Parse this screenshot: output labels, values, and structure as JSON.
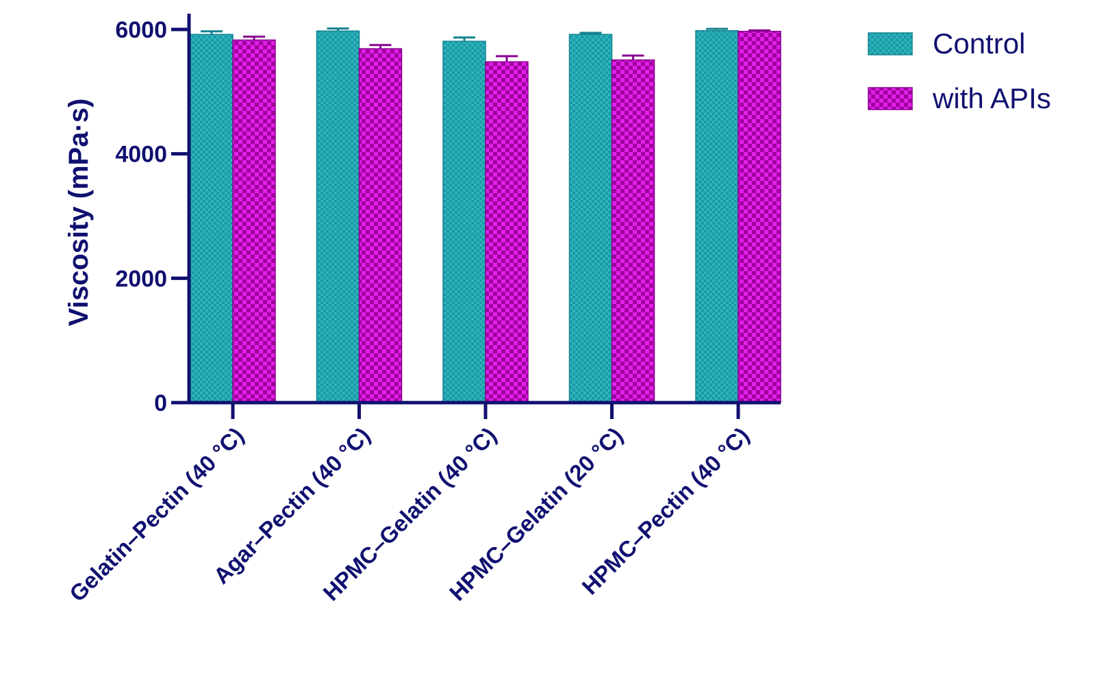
{
  "chart_data": {
    "type": "bar",
    "title": "",
    "xlabel": "",
    "ylabel": "Viscosity (mPa·s)",
    "ylim": [
      0,
      6000
    ],
    "yticks": [
      0,
      2000,
      4000,
      6000
    ],
    "categories": [
      "Gelatin–Pectin (40 °C)",
      "Agar–Pectin (40 °C)",
      "HPMC–Gelatin (40 °C)",
      "HPMC–Gelatin (20 °C)",
      "HPMC–Pectin (40 °C)"
    ],
    "series": [
      {
        "name": "Control",
        "color": "#1b9aa6",
        "values": [
          5920,
          5975,
          5810,
          5920,
          5980
        ],
        "errors": [
          50,
          40,
          60,
          25,
          30
        ]
      },
      {
        "name": "with APIs",
        "color": "#c010c8",
        "values": [
          5830,
          5690,
          5480,
          5510,
          5970
        ],
        "errors": [
          55,
          60,
          90,
          70,
          15
        ]
      }
    ],
    "legend_position": "top-right",
    "grid": false,
    "axis_color": "#101070"
  }
}
